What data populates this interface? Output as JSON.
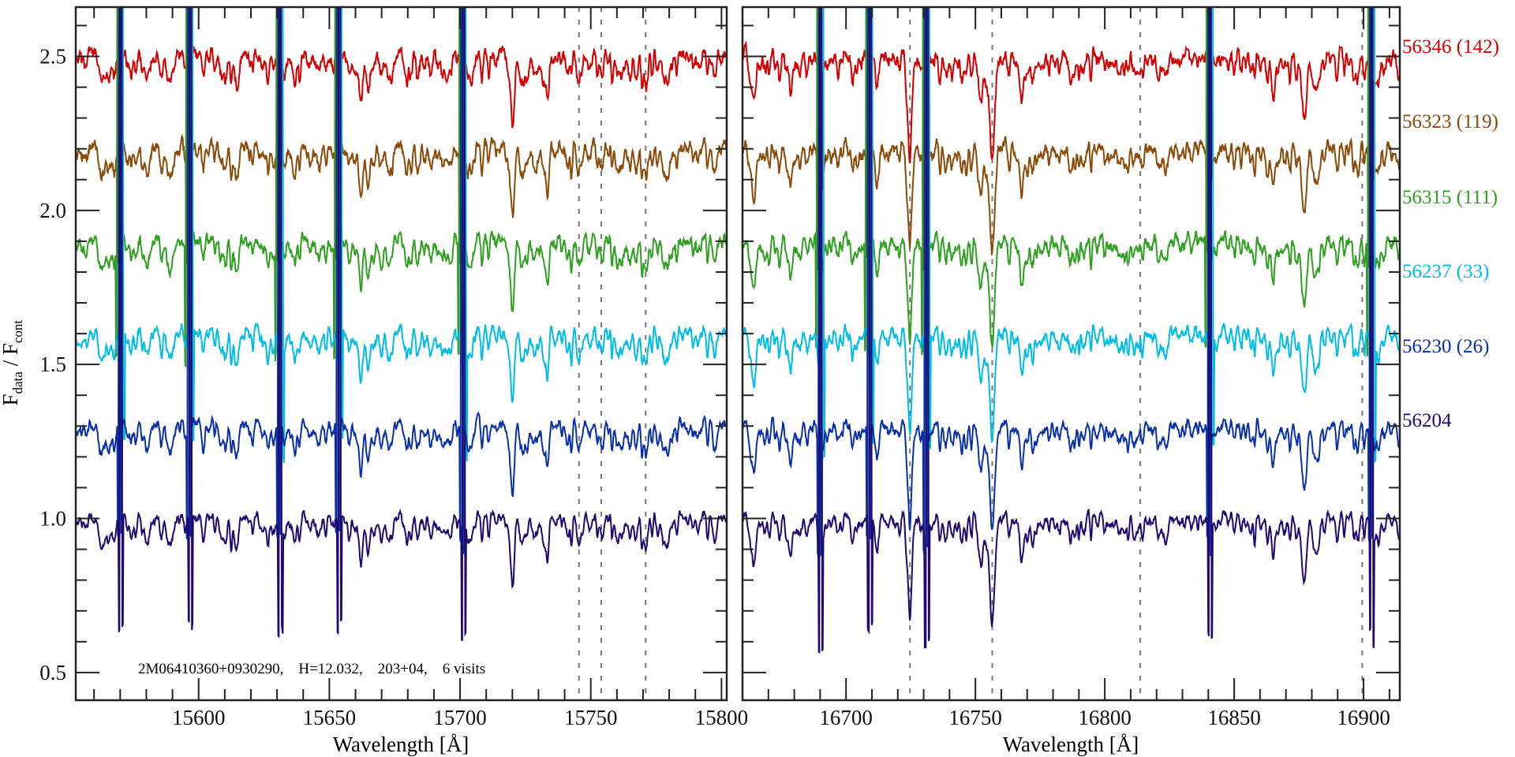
{
  "chart_data": {
    "type": "line",
    "title": "",
    "annotation": "2M06410360+0930290,    H=12.032,    203+04,    6 visits",
    "ylabel_main": "F",
    "ylabel_sub1": "data",
    "ylabel_sep": " / F",
    "ylabel_sub2": "cont",
    "ylim": [
      0.41,
      2.66
    ],
    "yticks": [
      0.5,
      1.0,
      1.5,
      2.0,
      2.5
    ],
    "ytick_labels": [
      "0.5",
      "1.0",
      "1.5",
      "2.0",
      "2.5"
    ],
    "yminor_step": 0.1,
    "panels": [
      {
        "xlabel": "Wavelength [Å]",
        "xlim": [
          15553,
          15802
        ],
        "xticks": [
          15600,
          15650,
          15700,
          15750,
          15800
        ],
        "xtick_labels": [
          "15600",
          "15650",
          "15700",
          "15750",
          "15800"
        ],
        "xminor_step": 10,
        "dashed_lines": [
          15745.5,
          15754,
          15771
        ],
        "sky_lines": [
          15570,
          15596.5,
          15631,
          15653.5,
          15701
        ],
        "features": [
          [
            15566,
            0.08
          ],
          [
            15580,
            0.09
          ],
          [
            15589,
            0.1
          ],
          [
            15614,
            0.06
          ],
          [
            15662,
            0.1
          ],
          [
            15665,
            0.08
          ],
          [
            15720,
            0.14
          ],
          [
            15724,
            0.1
          ],
          [
            15733,
            0.08
          ],
          [
            15745.5,
            0.06
          ],
          [
            15754,
            0.07
          ],
          [
            15771,
            0.1
          ],
          [
            15779,
            0.08
          ]
        ]
      },
      {
        "xlabel": "Wavelength [Å]",
        "xlim": [
          16660,
          16914
        ],
        "xticks": [
          16700,
          16750,
          16800,
          16850,
          16900
        ],
        "xtick_labels": [
          "16700",
          "16750",
          "16800",
          "16850",
          "16900"
        ],
        "xminor_step": 10,
        "dashed_lines": [
          16724.7,
          16756.5,
          16813.7,
          16899.5
        ],
        "sky_lines": [
          16690,
          16709,
          16731,
          16840.5,
          16903
        ],
        "features": [
          [
            16664,
            0.1
          ],
          [
            16678,
            0.08
          ],
          [
            16712,
            0.1
          ],
          [
            16724.7,
            0.25
          ],
          [
            16756.5,
            0.32
          ],
          [
            16752,
            0.12
          ],
          [
            16768,
            0.14
          ],
          [
            16787,
            0.06
          ],
          [
            16865,
            0.08
          ],
          [
            16877,
            0.12
          ],
          [
            16882,
            0.1
          ]
        ]
      }
    ],
    "series": [
      {
        "name": "56346",
        "label": "56346 (142)",
        "color": "#d40000",
        "offset": 2.5,
        "sky_shift": 0.0
      },
      {
        "name": "56323",
        "label": "56323 (119)",
        "color": "#8a4b08",
        "offset": 2.2,
        "sky_shift": -0.4
      },
      {
        "name": "56315",
        "label": "56315 (111)",
        "color": "#2fa020",
        "offset": 1.9,
        "sky_shift": -0.9
      },
      {
        "name": "56237",
        "label": "56237 (33)",
        "color": "#00bde6",
        "offset": 1.6,
        "sky_shift": 0.8
      },
      {
        "name": "56230",
        "label": "56230 (26)",
        "color": "#0a30a8",
        "offset": 1.3,
        "sky_shift": -0.2
      },
      {
        "name": "56204",
        "label": "56204",
        "color": "#200a70",
        "offset": 1.0,
        "sky_shift": 0.3
      }
    ]
  }
}
